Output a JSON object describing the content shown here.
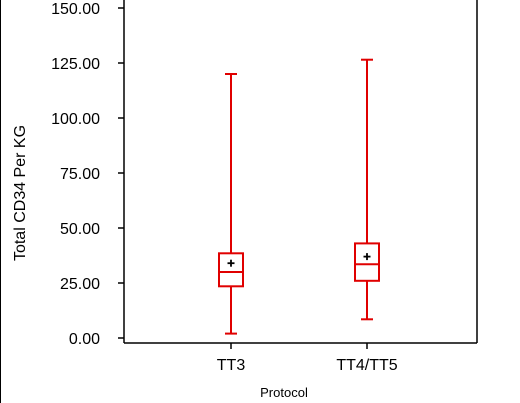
{
  "chart_data": {
    "type": "box",
    "xlabel": "Protocol",
    "ylabel": "Total CD34 Per KG",
    "ylim": [
      0,
      150
    ],
    "y_ticks": [
      "0.00",
      "25.00",
      "50.00",
      "75.00",
      "100.00",
      "125.00",
      "150.00"
    ],
    "categories": [
      "TT3",
      "TT4/TT5"
    ],
    "series": [
      {
        "category": "TT3",
        "min": 2,
        "q1": 23.5,
        "median": 30,
        "mean": 34,
        "q3": 38.5,
        "max": 120
      },
      {
        "category": "TT4/TT5",
        "min": 8.5,
        "q1": 26,
        "median": 33.5,
        "mean": 37,
        "q3": 43,
        "max": 126.5
      }
    ],
    "box_color": "#e00000",
    "mean_marker_color": "#000000",
    "grid": false
  }
}
